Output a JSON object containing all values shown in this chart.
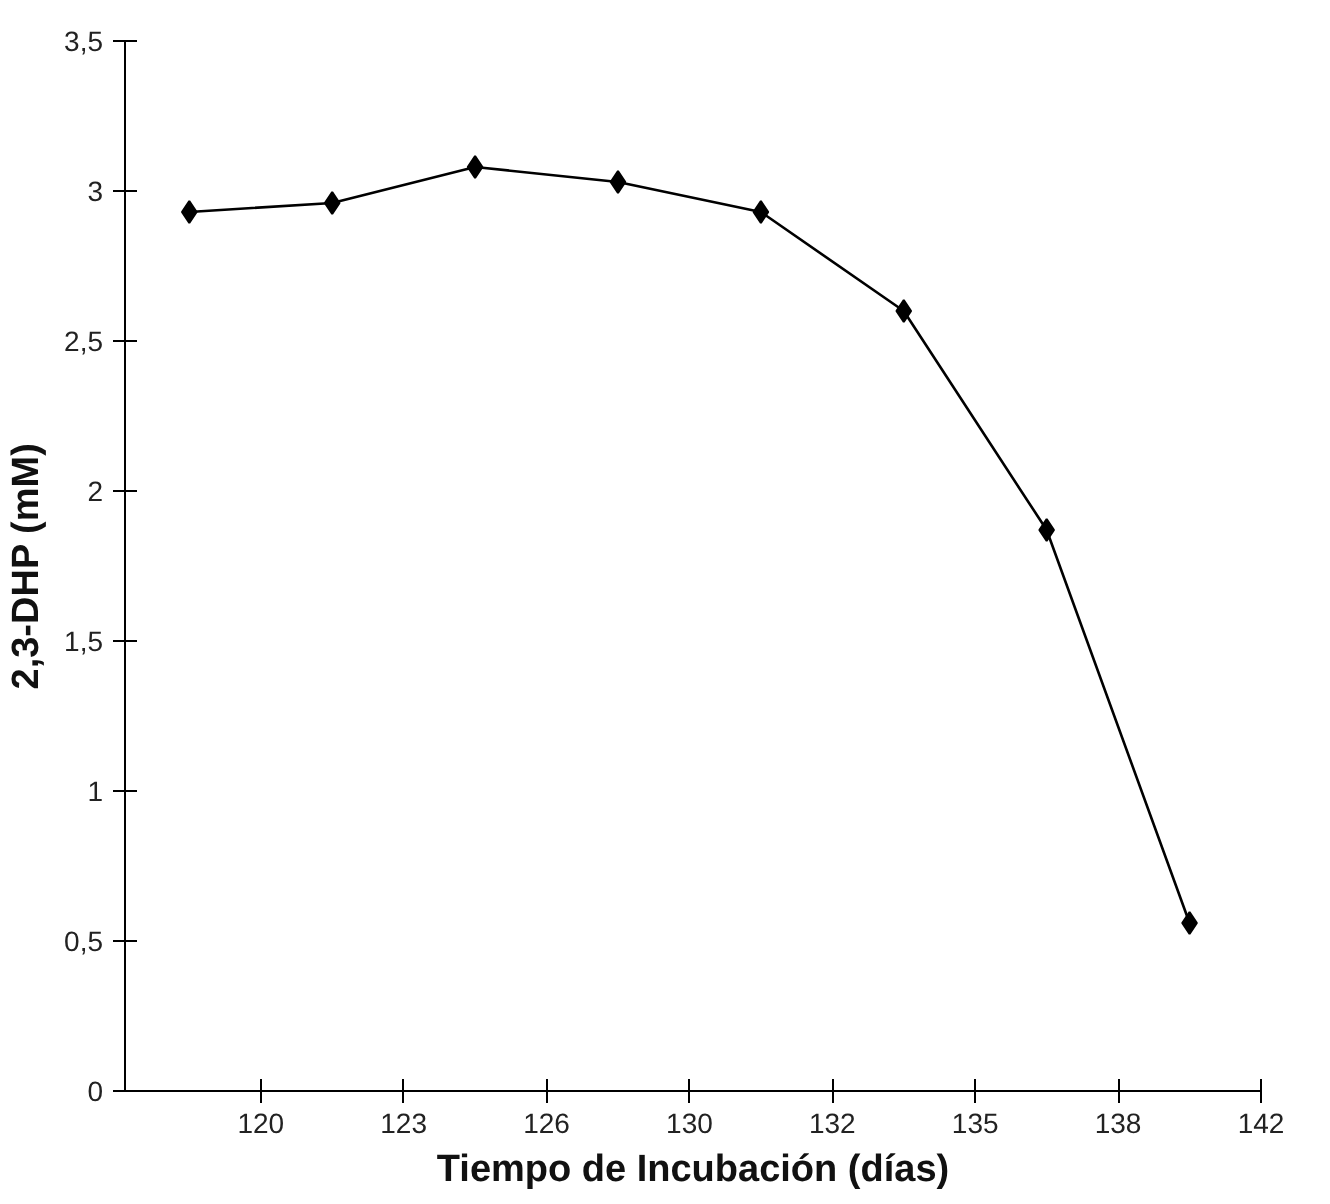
{
  "chart_data": {
    "type": "line",
    "xlabel": "Tiempo de Incubación (días)",
    "ylabel": "2,3-DHP (mM)",
    "categories": [
      null,
      "120",
      null,
      "123",
      null,
      "126",
      null,
      "130",
      null,
      "132",
      null,
      "135",
      null,
      "138",
      null,
      "142"
    ],
    "series": [
      {
        "color": "#000000",
        "values": [
          2.93,
          null,
          2.96,
          null,
          3.08,
          null,
          3.03,
          null,
          2.93,
          null,
          2.6,
          null,
          1.87,
          null,
          0.56,
          null
        ]
      }
    ],
    "ylim": [
      0,
      3.5
    ],
    "yticks": [
      0,
      {
        "value": 0.5,
        "label": "0,5"
      },
      1,
      {
        "value": 1.5,
        "label": "1,5"
      },
      2,
      {
        "value": 2.5,
        "label": "2,5"
      },
      3,
      {
        "value": 3.5,
        "label": "3,5"
      }
    ],
    "grid": false,
    "marker": "diamond",
    "line_style": "solid"
  }
}
